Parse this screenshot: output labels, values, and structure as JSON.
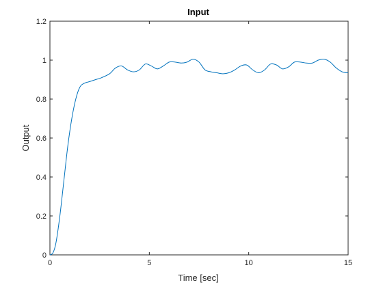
{
  "chart_data": {
    "type": "line",
    "title": "Input",
    "xlabel": "Time [sec]",
    "ylabel": "Output",
    "xlim": [
      0,
      15
    ],
    "ylim": [
      0,
      1.2
    ],
    "xticks": [
      0,
      5,
      10,
      15
    ],
    "xtick_labels": [
      "0",
      "5",
      "10",
      "15"
    ],
    "yticks": [
      0,
      0.2,
      0.4,
      0.6,
      0.8,
      1,
      1.2
    ],
    "ytick_labels": [
      "0",
      "0.2",
      "0.4",
      "0.6",
      "0.8",
      "1",
      "1.2"
    ],
    "grid": false,
    "line_color": "#0072BD",
    "series": [
      {
        "x": [
          0,
          0.15,
          0.3,
          0.5,
          0.7,
          0.9,
          1.1,
          1.3,
          1.5,
          1.7,
          2.0,
          2.3,
          2.6,
          3.0,
          3.3,
          3.6,
          3.9,
          4.2,
          4.5,
          4.8,
          5.1,
          5.4,
          5.7,
          6.0,
          6.3,
          6.6,
          6.9,
          7.2,
          7.5,
          7.8,
          8.1,
          8.4,
          8.7,
          9.0,
          9.3,
          9.6,
          9.9,
          10.2,
          10.5,
          10.8,
          11.1,
          11.4,
          11.7,
          12.0,
          12.3,
          12.6,
          12.9,
          13.2,
          13.5,
          13.8,
          14.1,
          14.4,
          14.7,
          15.0
        ],
        "y": [
          0,
          0.01,
          0.06,
          0.2,
          0.38,
          0.56,
          0.7,
          0.8,
          0.86,
          0.88,
          0.89,
          0.9,
          0.91,
          0.93,
          0.96,
          0.97,
          0.95,
          0.94,
          0.95,
          0.98,
          0.97,
          0.955,
          0.97,
          0.99,
          0.99,
          0.985,
          0.99,
          1.005,
          0.99,
          0.95,
          0.94,
          0.935,
          0.93,
          0.935,
          0.95,
          0.97,
          0.975,
          0.95,
          0.935,
          0.95,
          0.98,
          0.975,
          0.955,
          0.965,
          0.99,
          0.99,
          0.985,
          0.985,
          1.0,
          1.005,
          0.99,
          0.96,
          0.94,
          0.935
        ]
      }
    ]
  }
}
